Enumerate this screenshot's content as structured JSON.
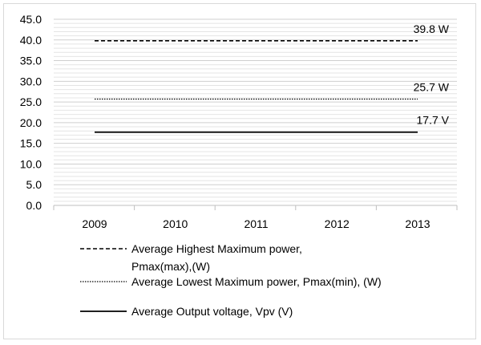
{
  "chart_data": {
    "type": "line",
    "categories": [
      "2009",
      "2010",
      "2011",
      "2012",
      "2013"
    ],
    "ylim": [
      0,
      45
    ],
    "y_ticks": [
      "0.0",
      "5.0",
      "10.0",
      "15.0",
      "20.0",
      "25.0",
      "30.0",
      "35.0",
      "40.0",
      "45.0"
    ],
    "grid": true,
    "legend_position": "bottom",
    "series": [
      {
        "name": "Average Highest Maximum power, Pmax(max),(W)",
        "legend_lines": [
          "Average Highest Maximum power,",
          "Pmax(max),(W)"
        ],
        "values": [
          39.8,
          39.8,
          39.8,
          39.8,
          39.8
        ],
        "end_label": "39.8 W",
        "style": "dashed",
        "color": "#000000"
      },
      {
        "name": "Average Lowest Maximum power, Pmax(min), (W)",
        "legend_lines": [
          "Average Lowest Maximum power, Pmax(min), (W)"
        ],
        "values": [
          25.7,
          25.7,
          25.7,
          25.7,
          25.7
        ],
        "end_label": "25.7 W",
        "style": "dotted",
        "color": "#000000"
      },
      {
        "name": "Average Output voltage, Vpv (V)",
        "legend_lines": [
          "Average Output voltage, Vpv (V)"
        ],
        "values": [
          17.7,
          17.7,
          17.7,
          17.7,
          17.7
        ],
        "end_label": "17.7 V",
        "style": "solid",
        "color": "#000000"
      }
    ]
  }
}
